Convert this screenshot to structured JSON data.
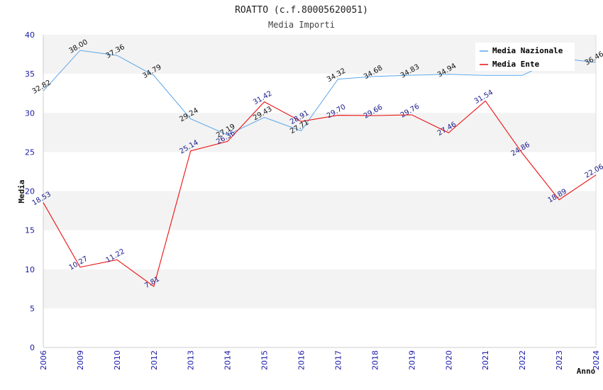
{
  "chart_data": {
    "type": "line",
    "title": "ROATTO (c.f.80005620051)",
    "subtitle": "Media Importi",
    "xlabel": "Anno",
    "ylabel": "Media",
    "ylim": [
      0,
      40
    ],
    "y_ticks": [
      "0",
      "5",
      "10",
      "15",
      "20",
      "25",
      "30",
      "35",
      "40"
    ],
    "categories": [
      "2006",
      "2009",
      "2010",
      "2012",
      "2013",
      "2014",
      "2015",
      "2016",
      "2017",
      "2018",
      "2019",
      "2020",
      "2021",
      "2022",
      "2023",
      "2024"
    ],
    "grid": "horizontal bands",
    "legend_position": "top-right",
    "series": [
      {
        "name": "Media Nazionale",
        "color": "#5aa6e8",
        "values": [
          32.82,
          38.0,
          37.36,
          34.79,
          29.24,
          27.19,
          29.43,
          27.71,
          34.32,
          34.68,
          34.83,
          34.94,
          34.8,
          34.8,
          37.0,
          36.46
        ],
        "labels": [
          "32.82",
          "38.00",
          "37.36",
          "34.79",
          "29.24",
          "27.19",
          "29.43",
          "27.71",
          "34.32",
          "34.68",
          "34.83",
          "34.94",
          "",
          "",
          "",
          "36.46"
        ]
      },
      {
        "name": "Media Ente",
        "color": "#ee1111",
        "values": [
          18.53,
          10.27,
          11.22,
          7.81,
          25.14,
          26.36,
          31.42,
          28.91,
          29.7,
          29.66,
          29.76,
          27.46,
          31.54,
          24.86,
          18.89,
          22.06
        ],
        "labels": [
          "18.53",
          "10.27",
          "11.22",
          "7.81",
          "25.14",
          "26.36",
          "31.42",
          "28.91",
          "29.70",
          "29.66",
          "29.76",
          "27.46",
          "31.54",
          "24.86",
          "18.89",
          "22.06"
        ]
      }
    ]
  }
}
